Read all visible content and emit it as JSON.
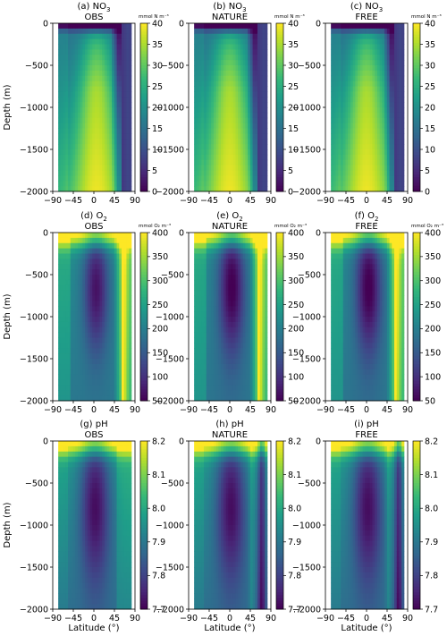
{
  "chart_data": {
    "type": "heatmap",
    "depth_axis_label": "Depth (m)",
    "latitude_axis_label": "Latitude (°)",
    "x_ticks": [
      "−90",
      "−45",
      "0",
      "45",
      "90"
    ],
    "y_ticks": [
      "0",
      "−500",
      "−1000",
      "−1500",
      "−2000"
    ],
    "xlim": [
      -90,
      90
    ],
    "ylim": [
      -2000,
      0
    ],
    "colormap": "viridis",
    "columns": [
      "OBS",
      "NATURE",
      "FREE"
    ],
    "rows": [
      {
        "variable": "NO3",
        "title_prefix": "NO",
        "title_sub": "3",
        "unit": "mmol N m⁻³",
        "color_ticks": [
          "40",
          "35",
          "30",
          "25",
          "20",
          "15",
          "10",
          "5",
          "0"
        ],
        "vmin": 0,
        "vmax": 40
      },
      {
        "variable": "O2",
        "title_prefix": "O",
        "title_sub": "2",
        "unit": "mmol O₂ m⁻³",
        "color_ticks": [
          "400",
          "350",
          "300",
          "250",
          "200",
          "150",
          "100",
          "50"
        ],
        "vmin": 50,
        "vmax": 400
      },
      {
        "variable": "pH",
        "title_prefix": "pH",
        "title_sub": "",
        "unit": "",
        "color_ticks": [
          "8.2",
          "8.1",
          "8.0",
          "7.9",
          "7.8",
          "7.7"
        ],
        "vmin": 7.7,
        "vmax": 8.2
      }
    ],
    "panels": [
      {
        "letter": "(a)",
        "row": 0,
        "col": 0
      },
      {
        "letter": "(b)",
        "row": 0,
        "col": 1
      },
      {
        "letter": "(c)",
        "row": 0,
        "col": 2
      },
      {
        "letter": "(d)",
        "row": 1,
        "col": 0
      },
      {
        "letter": "(e)",
        "row": 1,
        "col": 1
      },
      {
        "letter": "(f)",
        "row": 1,
        "col": 2
      },
      {
        "letter": "(g)",
        "row": 2,
        "col": 0
      },
      {
        "letter": "(h)",
        "row": 2,
        "col": 1
      },
      {
        "letter": "(i)",
        "row": 2,
        "col": 2
      }
    ]
  }
}
